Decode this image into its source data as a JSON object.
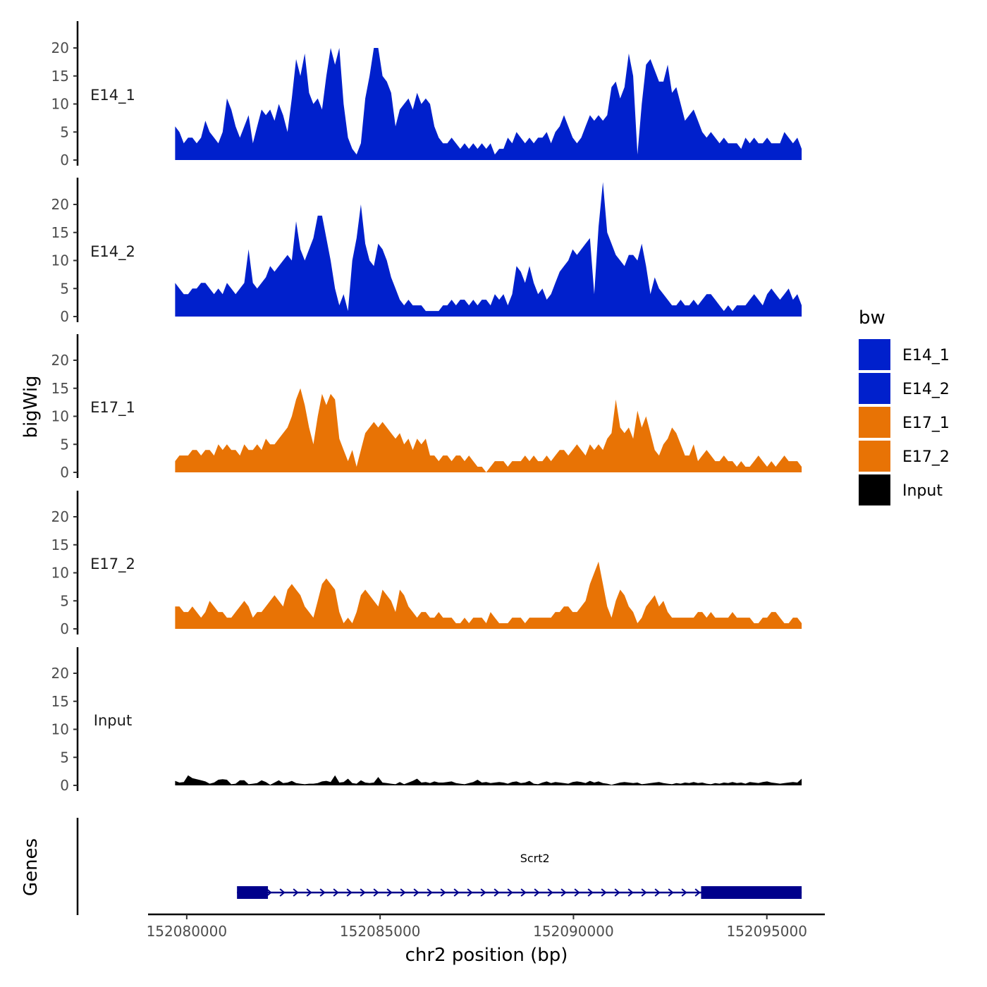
{
  "chart_data": {
    "type": "area",
    "ylabel": "bigWig",
    "xlabel": "chr2 position (bp)",
    "ylim": [
      0,
      24
    ],
    "yticks": [
      0,
      5,
      10,
      15,
      20
    ],
    "xlim": [
      152079000,
      152096500
    ],
    "xticks": [
      152080000,
      152085000,
      152090000,
      152095000
    ],
    "data_x_start": 152079700,
    "data_x_end": 152095900,
    "tracks": [
      {
        "name": "E14_1",
        "color": "#0020CC",
        "values": [
          6,
          5,
          3,
          4,
          4,
          3,
          4,
          7,
          5,
          4,
          3,
          5,
          11,
          9,
          6,
          4,
          6,
          8,
          3,
          6,
          9,
          8,
          9,
          7,
          10,
          8,
          5,
          11,
          18,
          15,
          19,
          12,
          10,
          11,
          9,
          15,
          20,
          17,
          20,
          10,
          4,
          2,
          1,
          3,
          11,
          15,
          20,
          20,
          15,
          14,
          12,
          6,
          9,
          10,
          11,
          9,
          12,
          10,
          11,
          10,
          6,
          4,
          3,
          3,
          4,
          3,
          2,
          3,
          2,
          3,
          2,
          3,
          2,
          3,
          1,
          2,
          2,
          4,
          3,
          5,
          4,
          3,
          4,
          3,
          4,
          4,
          5,
          3,
          5,
          6,
          8,
          6,
          4,
          3,
          4,
          6,
          8,
          7,
          8,
          7,
          8,
          13,
          14,
          11,
          13,
          19,
          15,
          1,
          10,
          17,
          18,
          16,
          14,
          14,
          17,
          12,
          13,
          10,
          7,
          8,
          9,
          7,
          5,
          4,
          5,
          4,
          3,
          4,
          3,
          3,
          3,
          2,
          4,
          3,
          4,
          3,
          3,
          4,
          3,
          3,
          3,
          5,
          4,
          3,
          4,
          2
        ]
      },
      {
        "name": "E14_2",
        "color": "#0020CC",
        "values": [
          6,
          5,
          4,
          4,
          5,
          5,
          6,
          6,
          5,
          4,
          5,
          4,
          6,
          5,
          4,
          5,
          6,
          12,
          6,
          5,
          6,
          7,
          9,
          8,
          9,
          10,
          11,
          10,
          17,
          12,
          10,
          12,
          14,
          18,
          18,
          14,
          10,
          5,
          2,
          4,
          1,
          10,
          14,
          20,
          13,
          10,
          9,
          13,
          12,
          10,
          7,
          5,
          3,
          2,
          3,
          2,
          2,
          2,
          1,
          1,
          1,
          1,
          2,
          2,
          3,
          2,
          3,
          3,
          2,
          3,
          2,
          3,
          3,
          2,
          4,
          3,
          4,
          2,
          4,
          9,
          8,
          6,
          9,
          6,
          4,
          5,
          3,
          4,
          6,
          8,
          9,
          10,
          12,
          11,
          12,
          13,
          14,
          4,
          16,
          24,
          15,
          13,
          11,
          10,
          9,
          11,
          11,
          10,
          13,
          9,
          4,
          7,
          5,
          4,
          3,
          2,
          2,
          3,
          2,
          2,
          3,
          2,
          3,
          4,
          4,
          3,
          2,
          1,
          2,
          1,
          2,
          2,
          2,
          3,
          4,
          3,
          2,
          4,
          5,
          4,
          3,
          4,
          5,
          3,
          4,
          2
        ]
      },
      {
        "name": "E17_1",
        "color": "#E87305",
        "values": [
          2,
          3,
          3,
          3,
          4,
          4,
          3,
          4,
          4,
          3,
          5,
          4,
          5,
          4,
          4,
          3,
          5,
          4,
          4,
          5,
          4,
          6,
          5,
          5,
          6,
          7,
          8,
          10,
          13,
          15,
          12,
          8,
          5,
          10,
          14,
          12,
          14,
          13,
          6,
          4,
          2,
          4,
          1,
          4,
          7,
          8,
          9,
          8,
          9,
          8,
          7,
          6,
          7,
          5,
          6,
          4,
          6,
          5,
          6,
          3,
          3,
          2,
          3,
          3,
          2,
          3,
          3,
          2,
          3,
          2,
          1,
          1,
          0,
          1,
          2,
          2,
          2,
          1,
          2,
          2,
          2,
          3,
          2,
          3,
          2,
          2,
          3,
          2,
          3,
          4,
          4,
          3,
          4,
          5,
          4,
          3,
          5,
          4,
          5,
          4,
          6,
          7,
          13,
          8,
          7,
          8,
          6,
          11,
          8,
          10,
          7,
          4,
          3,
          5,
          6,
          8,
          7,
          5,
          3,
          3,
          5,
          2,
          3,
          4,
          3,
          2,
          2,
          3,
          2,
          2,
          1,
          2,
          1,
          1,
          2,
          3,
          2,
          1,
          2,
          1,
          2,
          3,
          2,
          2,
          2,
          1
        ]
      },
      {
        "name": "E17_2",
        "color": "#E87305",
        "values": [
          4,
          4,
          3,
          3,
          4,
          3,
          2,
          3,
          5,
          4,
          3,
          3,
          2,
          2,
          3,
          4,
          5,
          4,
          2,
          3,
          3,
          4,
          5,
          6,
          5,
          4,
          7,
          8,
          7,
          6,
          4,
          3,
          2,
          5,
          8,
          9,
          8,
          7,
          3,
          1,
          2,
          1,
          3,
          6,
          7,
          6,
          5,
          4,
          7,
          6,
          5,
          3,
          7,
          6,
          4,
          3,
          2,
          3,
          3,
          2,
          2,
          3,
          2,
          2,
          2,
          1,
          1,
          2,
          1,
          2,
          2,
          2,
          1,
          3,
          2,
          1,
          1,
          1,
          2,
          2,
          2,
          1,
          2,
          2,
          2,
          2,
          2,
          2,
          3,
          3,
          4,
          4,
          3,
          3,
          4,
          5,
          8,
          10,
          12,
          8,
          4,
          2,
          5,
          7,
          6,
          4,
          3,
          1,
          2,
          4,
          5,
          6,
          4,
          5,
          3,
          2,
          2,
          2,
          2,
          2,
          2,
          3,
          3,
          2,
          3,
          2,
          2,
          2,
          2,
          3,
          2,
          2,
          2,
          2,
          1,
          1,
          2,
          2,
          3,
          3,
          2,
          1,
          1,
          2,
          2,
          1
        ]
      },
      {
        "name": "Input",
        "color": "#000000",
        "values": [
          0.8,
          0.5,
          0.6,
          1.8,
          1.3,
          1.1,
          0.9,
          0.7,
          0.3,
          0.5,
          1,
          1.1,
          1,
          0.2,
          0.3,
          0.9,
          0.9,
          0.2,
          0.3,
          0.4,
          0.9,
          0.6,
          0.1,
          0.5,
          0.9,
          0.4,
          0.5,
          0.8,
          0.4,
          0.3,
          0.2,
          0.3,
          0.3,
          0.4,
          0.7,
          0.8,
          0.6,
          1.8,
          0.5,
          0.6,
          1.2,
          0.4,
          0.3,
          0.9,
          0.5,
          0.4,
          0.5,
          1.5,
          0.5,
          0.4,
          0.3,
          0.2,
          0.6,
          0.2,
          0.5,
          0.8,
          1.2,
          0.5,
          0.6,
          0.4,
          0.7,
          0.5,
          0.5,
          0.6,
          0.7,
          0.4,
          0.3,
          0.2,
          0.4,
          0.6,
          1,
          0.5,
          0.6,
          0.4,
          0.5,
          0.6,
          0.5,
          0.3,
          0.6,
          0.7,
          0.4,
          0.5,
          0.8,
          0.3,
          0.2,
          0.5,
          0.7,
          0.4,
          0.6,
          0.5,
          0.4,
          0.3,
          0.6,
          0.7,
          0.6,
          0.4,
          0.8,
          0.5,
          0.7,
          0.4,
          0.3,
          0.1,
          0.3,
          0.5,
          0.6,
          0.5,
          0.4,
          0.5,
          0.2,
          0.3,
          0.4,
          0.5,
          0.6,
          0.4,
          0.3,
          0.2,
          0.4,
          0.3,
          0.5,
          0.4,
          0.6,
          0.4,
          0.5,
          0.3,
          0.2,
          0.4,
          0.3,
          0.5,
          0.4,
          0.6,
          0.4,
          0.5,
          0.3,
          0.6,
          0.5,
          0.4,
          0.6,
          0.7,
          0.5,
          0.4,
          0.3,
          0.4,
          0.5,
          0.6,
          0.5,
          1.2
        ]
      }
    ],
    "genes": {
      "ylabel": "Genes",
      "items": [
        {
          "name": "Scrt2",
          "strand": "+",
          "start": 152081300,
          "end": 152095900,
          "exons": [
            [
              152081300,
              152082100
            ],
            [
              152093300,
              152095900
            ]
          ],
          "color": "#00008B"
        }
      ]
    },
    "legend": {
      "title": "bw",
      "position": "right",
      "entries": [
        {
          "label": "E14_1",
          "color": "#0020CC"
        },
        {
          "label": "E14_2",
          "color": "#0020CC"
        },
        {
          "label": "E17_1",
          "color": "#E87305"
        },
        {
          "label": "E17_2",
          "color": "#E87305"
        },
        {
          "label": "Input",
          "color": "#000000"
        }
      ]
    }
  }
}
